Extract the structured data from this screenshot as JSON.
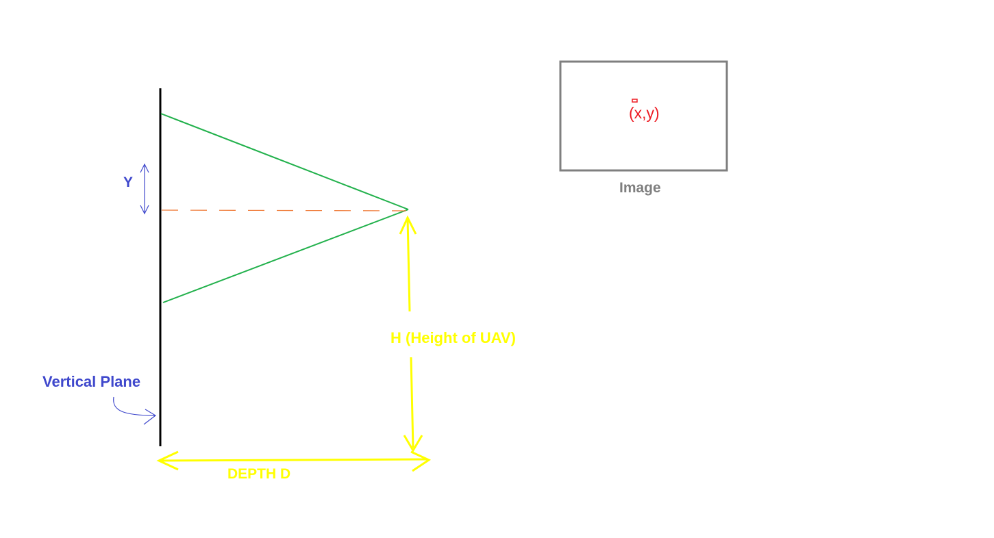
{
  "labels": {
    "y": "Y",
    "vertical_plane": "Vertical Plane",
    "height": "H (Height of UAV)",
    "depth": "DEPTH D",
    "image_caption": "Image",
    "point_xy": "(x,y)"
  },
  "colors": {
    "plane": "#000000",
    "view_ray": "#22b14c",
    "center_ray": "#f08040",
    "dimension": "#ffff00",
    "annotation_blue": "#3f48cc",
    "image_border": "#7f7f7f",
    "point": "#ed1c24"
  }
}
